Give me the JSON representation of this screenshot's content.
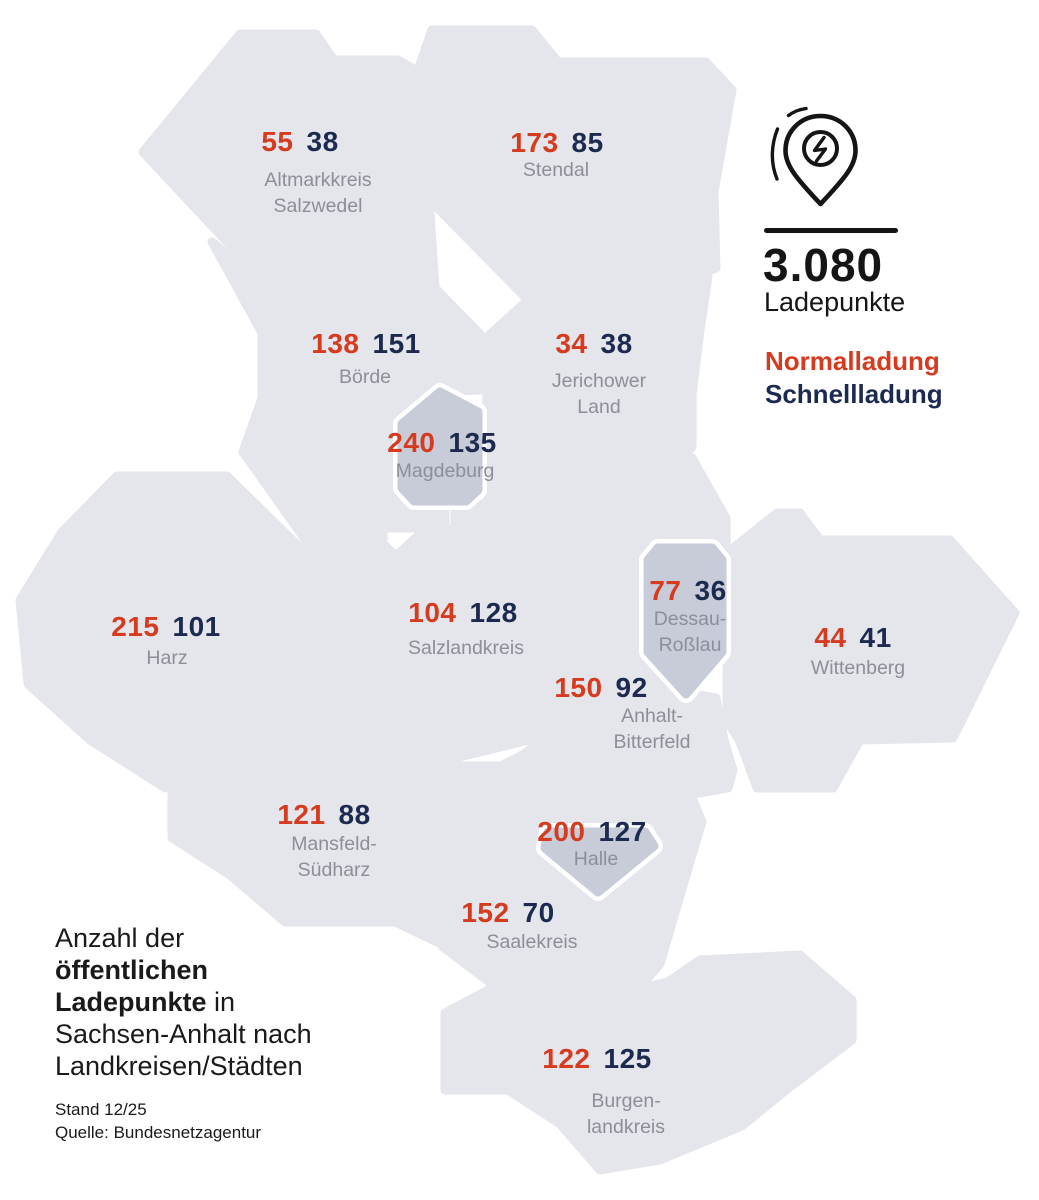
{
  "title_block": {
    "line1": "Anzahl der",
    "line2_bold": "öffentlichen",
    "line3_bold": "Ladepunkte",
    "line3_rest": " in",
    "line4": "Sachsen-Anhalt nach",
    "line5": "Landkreisen/Städten",
    "stand": "Stand 12/25",
    "quelle": "Quelle: Bundesnetzagentur"
  },
  "legend": {
    "total": "3.080",
    "total_label": "Ladepunkte",
    "normal_label": "Normalladung",
    "fast_label": "Schnellladung",
    "icon": "charging-location-pin-icon"
  },
  "colors": {
    "normal": "#d63a1f",
    "fast": "#1d2a50",
    "district_fill": "#e4e6eb",
    "city_fill": "#c7ccd8",
    "label_gray": "#8b8f98",
    "ink": "#151515",
    "background": "#ffffff"
  },
  "map": {
    "regions": [
      {
        "id": "altmarkkreis-salzwedel",
        "name": "Altmarkkreis Salzwedel",
        "type": "district",
        "normal": 55,
        "fast": 38,
        "label_lines": [
          "Altmarkkreis",
          "Salzwedel"
        ],
        "num": [
          300,
          151
        ],
        "label": [
          318,
          186
        ]
      },
      {
        "id": "stendal",
        "name": "Stendal",
        "type": "district",
        "normal": 173,
        "fast": 85,
        "label_lines": [
          "Stendal"
        ],
        "num": [
          557,
          152
        ],
        "label": [
          556,
          176
        ]
      },
      {
        "id": "boerde",
        "name": "Börde",
        "type": "district",
        "normal": 138,
        "fast": 151,
        "label_lines": [
          "Börde"
        ],
        "num": [
          366,
          353
        ],
        "label": [
          365,
          383
        ]
      },
      {
        "id": "jerichower-land",
        "name": "Jerichower Land",
        "type": "district",
        "normal": 34,
        "fast": 38,
        "label_lines": [
          "Jerichower",
          "Land"
        ],
        "num": [
          594,
          353
        ],
        "label": [
          599,
          387
        ]
      },
      {
        "id": "harz",
        "name": "Harz",
        "type": "district",
        "normal": 215,
        "fast": 101,
        "label_lines": [
          "Harz"
        ],
        "num": [
          166,
          636
        ],
        "label": [
          167,
          664
        ]
      },
      {
        "id": "salzlandkreis",
        "name": "Salzlandkreis",
        "type": "district",
        "normal": 104,
        "fast": 128,
        "label_lines": [
          "Salzlandkreis"
        ],
        "num": [
          463,
          622
        ],
        "label": [
          466,
          654
        ]
      },
      {
        "id": "anhalt-bitterfeld",
        "name": "Anhalt-Bitterfeld",
        "type": "district",
        "normal": 150,
        "fast": 92,
        "label_lines": [
          "Anhalt-",
          "Bitterfeld"
        ],
        "num": [
          601,
          697
        ],
        "label": [
          652,
          722
        ]
      },
      {
        "id": "wittenberg",
        "name": "Wittenberg",
        "type": "district",
        "normal": 44,
        "fast": 41,
        "label_lines": [
          "Wittenberg"
        ],
        "num": [
          853,
          647
        ],
        "label": [
          858,
          674
        ]
      },
      {
        "id": "mansfeld-suedharz",
        "name": "Mansfeld-Südharz",
        "type": "district",
        "normal": 121,
        "fast": 88,
        "label_lines": [
          "Mansfeld-",
          "Südharz"
        ],
        "num": [
          324,
          824
        ],
        "label": [
          334,
          850
        ]
      },
      {
        "id": "saalekreis",
        "name": "Saalekreis",
        "type": "district",
        "normal": 152,
        "fast": 70,
        "label_lines": [
          "Saalekreis"
        ],
        "num": [
          508,
          922
        ],
        "label": [
          532,
          948
        ]
      },
      {
        "id": "burgenlandkreis",
        "name": "Burgenlandkreis",
        "type": "district",
        "normal": 122,
        "fast": 125,
        "label_lines": [
          "Burgen-",
          "landkreis"
        ],
        "num": [
          597,
          1068
        ],
        "label": [
          626,
          1107
        ]
      },
      {
        "id": "magdeburg",
        "name": "Magdeburg",
        "type": "city",
        "normal": 240,
        "fast": 135,
        "label_lines": [
          "Magdeburg"
        ],
        "num": [
          442,
          452
        ],
        "label": [
          445,
          477
        ]
      },
      {
        "id": "dessau-rosslau",
        "name": "Dessau-Roßlau",
        "type": "city",
        "normal": 77,
        "fast": 36,
        "label_lines": [
          "Dessau-",
          "Roßlau"
        ],
        "num": [
          688,
          600
        ],
        "label": [
          690,
          625
        ]
      },
      {
        "id": "halle",
        "name": "Halle",
        "type": "city",
        "normal": 200,
        "fast": 127,
        "label_lines": [
          "Halle"
        ],
        "num": [
          592,
          841
        ],
        "label": [
          596,
          865
        ]
      }
    ]
  },
  "chart_data": {
    "type": "map",
    "title": "Anzahl der öffentlichen Ladepunkte in Sachsen-Anhalt nach Landkreisen/Städten",
    "unit": "Ladepunkte",
    "total": 3080,
    "stand": "Stand 12/25",
    "source": "Quelle: Bundesnetzagentur",
    "categories": [
      "Altmarkkreis Salzwedel",
      "Stendal",
      "Börde",
      "Jerichower Land",
      "Harz",
      "Salzlandkreis",
      "Anhalt-Bitterfeld",
      "Wittenberg",
      "Mansfeld-Südharz",
      "Saalekreis",
      "Burgenlandkreis",
      "Magdeburg",
      "Dessau-Roßlau",
      "Halle"
    ],
    "series": [
      {
        "name": "Normalladung",
        "color": "#d63a1f",
        "values": [
          55,
          173,
          138,
          34,
          215,
          104,
          150,
          44,
          121,
          152,
          122,
          240,
          77,
          200
        ]
      },
      {
        "name": "Schnellladung",
        "color": "#1d2a50",
        "values": [
          38,
          85,
          151,
          38,
          101,
          128,
          92,
          41,
          88,
          70,
          125,
          135,
          36,
          127
        ]
      }
    ]
  }
}
